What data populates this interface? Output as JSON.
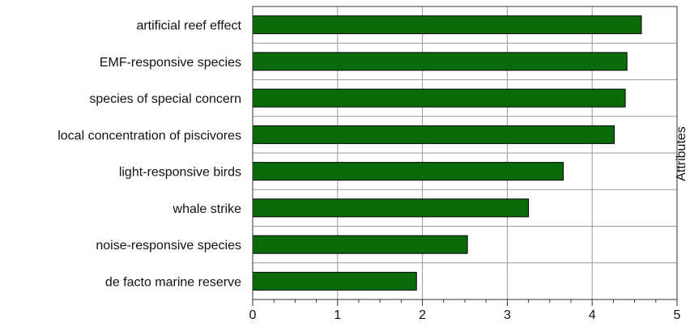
{
  "chart_data": {
    "type": "bar",
    "orientation": "horizontal",
    "categories": [
      "artificial reef effect",
      "EMF-responsive species",
      "species of special concern",
      "local concentration of piscivores",
      "light-responsive birds",
      "whale strike",
      "noise-responsive species",
      "de facto marine reserve"
    ],
    "values": [
      4.58,
      4.41,
      4.39,
      4.26,
      3.66,
      3.25,
      2.53,
      1.93
    ],
    "xlim": [
      0,
      5
    ],
    "xticks": [
      "0",
      "1",
      "2",
      "3",
      "4",
      "5"
    ],
    "title": "",
    "xlabel": "",
    "ylabel": "Attributes",
    "grid": true,
    "bar_color": "#0a6b0a",
    "bar_edge_color": "#000000",
    "grid_color": "#999999"
  }
}
